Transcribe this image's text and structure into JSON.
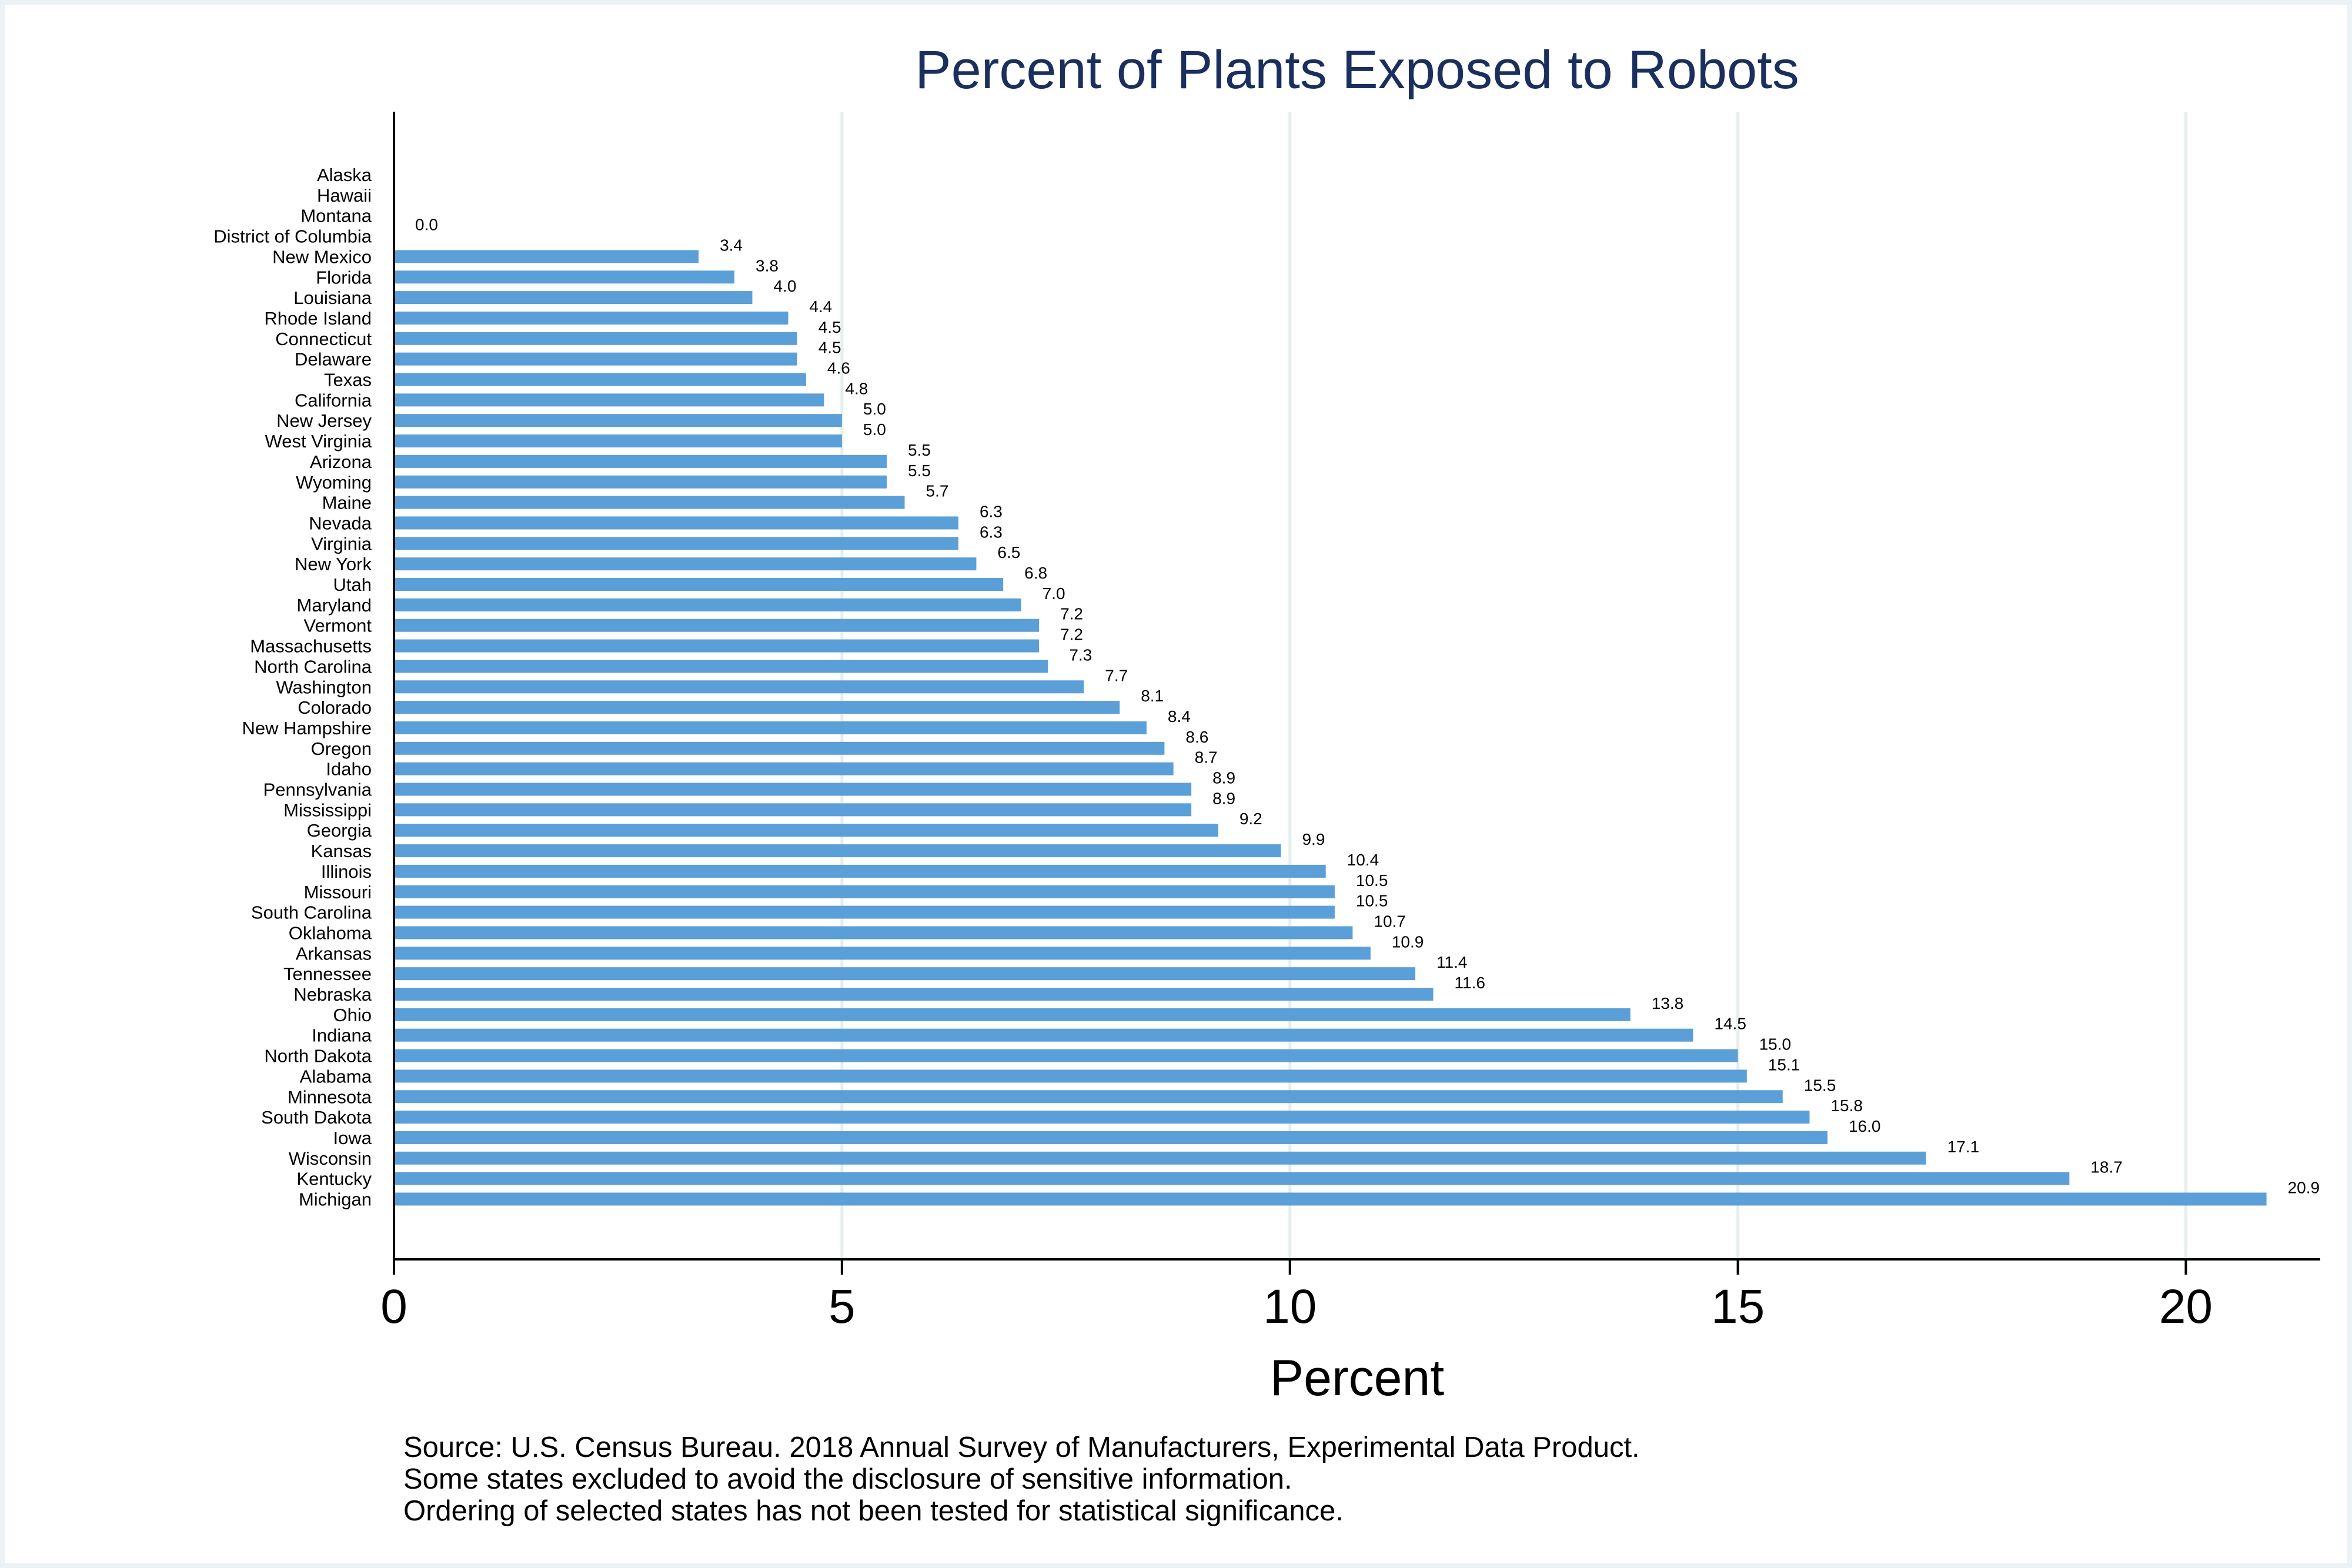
{
  "chart_data": {
    "type": "bar",
    "orientation": "horizontal",
    "title": "Percent of Plants Exposed to Robots",
    "xlabel": "Percent",
    "ylabel": "",
    "xlim": [
      0,
      21.5
    ],
    "x_ticks": [
      0,
      5,
      10,
      15,
      20
    ],
    "grid": true,
    "bar_color": "#5b9fd8",
    "title_color": "#1a2f5e",
    "categories": [
      "Alaska",
      "Hawaii",
      "Montana",
      "District of Columbia",
      "New Mexico",
      "Florida",
      "Louisiana",
      "Rhode Island",
      "Connecticut",
      "Delaware",
      "Texas",
      "California",
      "New Jersey",
      "West Virginia",
      "Arizona",
      "Wyoming",
      "Maine",
      "Nevada",
      "Virginia",
      "New York",
      "Utah",
      "Maryland",
      "Vermont",
      "Massachusetts",
      "North Carolina",
      "Washington",
      "Colorado",
      "New Hampshire",
      "Oregon",
      "Idaho",
      "Pennsylvania",
      "Mississippi",
      "Georgia",
      "Kansas",
      "Illinois",
      "Missouri",
      "South Carolina",
      "Oklahoma",
      "Arkansas",
      "Tennessee",
      "Nebraska",
      "Ohio",
      "Indiana",
      "North Dakota",
      "Alabama",
      "Minnesota",
      "South Dakota",
      "Iowa",
      "Wisconsin",
      "Kentucky",
      "Michigan"
    ],
    "values": [
      null,
      null,
      null,
      0.0,
      3.4,
      3.8,
      4.0,
      4.4,
      4.5,
      4.5,
      4.6,
      4.8,
      5.0,
      5.0,
      5.5,
      5.5,
      5.7,
      6.3,
      6.3,
      6.5,
      6.8,
      7.0,
      7.2,
      7.2,
      7.3,
      7.7,
      8.1,
      8.4,
      8.6,
      8.7,
      8.9,
      8.9,
      9.2,
      9.9,
      10.4,
      10.5,
      10.5,
      10.7,
      10.9,
      11.4,
      11.6,
      13.8,
      14.5,
      15.0,
      15.1,
      15.5,
      15.8,
      16.0,
      17.1,
      18.7,
      20.9
    ],
    "value_labels": [
      "",
      "",
      "",
      "0.0",
      "3.4",
      "3.8",
      "4.0",
      "4.4",
      "4.5",
      "4.5",
      "4.6",
      "4.8",
      "5.0",
      "5.0",
      "5.5",
      "5.5",
      "5.7",
      "6.3",
      "6.3",
      "6.5",
      "6.8",
      "7.0",
      "7.2",
      "7.2",
      "7.3",
      "7.7",
      "8.1",
      "8.4",
      "8.6",
      "8.7",
      "8.9",
      "8.9",
      "9.2",
      "9.9",
      "10.4",
      "10.5",
      "10.5",
      "10.7",
      "10.9",
      "11.4",
      "11.6",
      "13.8",
      "14.5",
      "15.0",
      "15.1",
      "15.5",
      "15.8",
      "16.0",
      "17.1",
      "18.7",
      "20.9"
    ]
  },
  "notes": [
    "Source: U.S. Census Bureau. 2018 Annual Survey of Manufacturers, Experimental Data Product.",
    "Some states excluded to avoid the disclosure of sensitive information.",
    "Ordering of selected states has not been tested for statistical significance."
  ]
}
